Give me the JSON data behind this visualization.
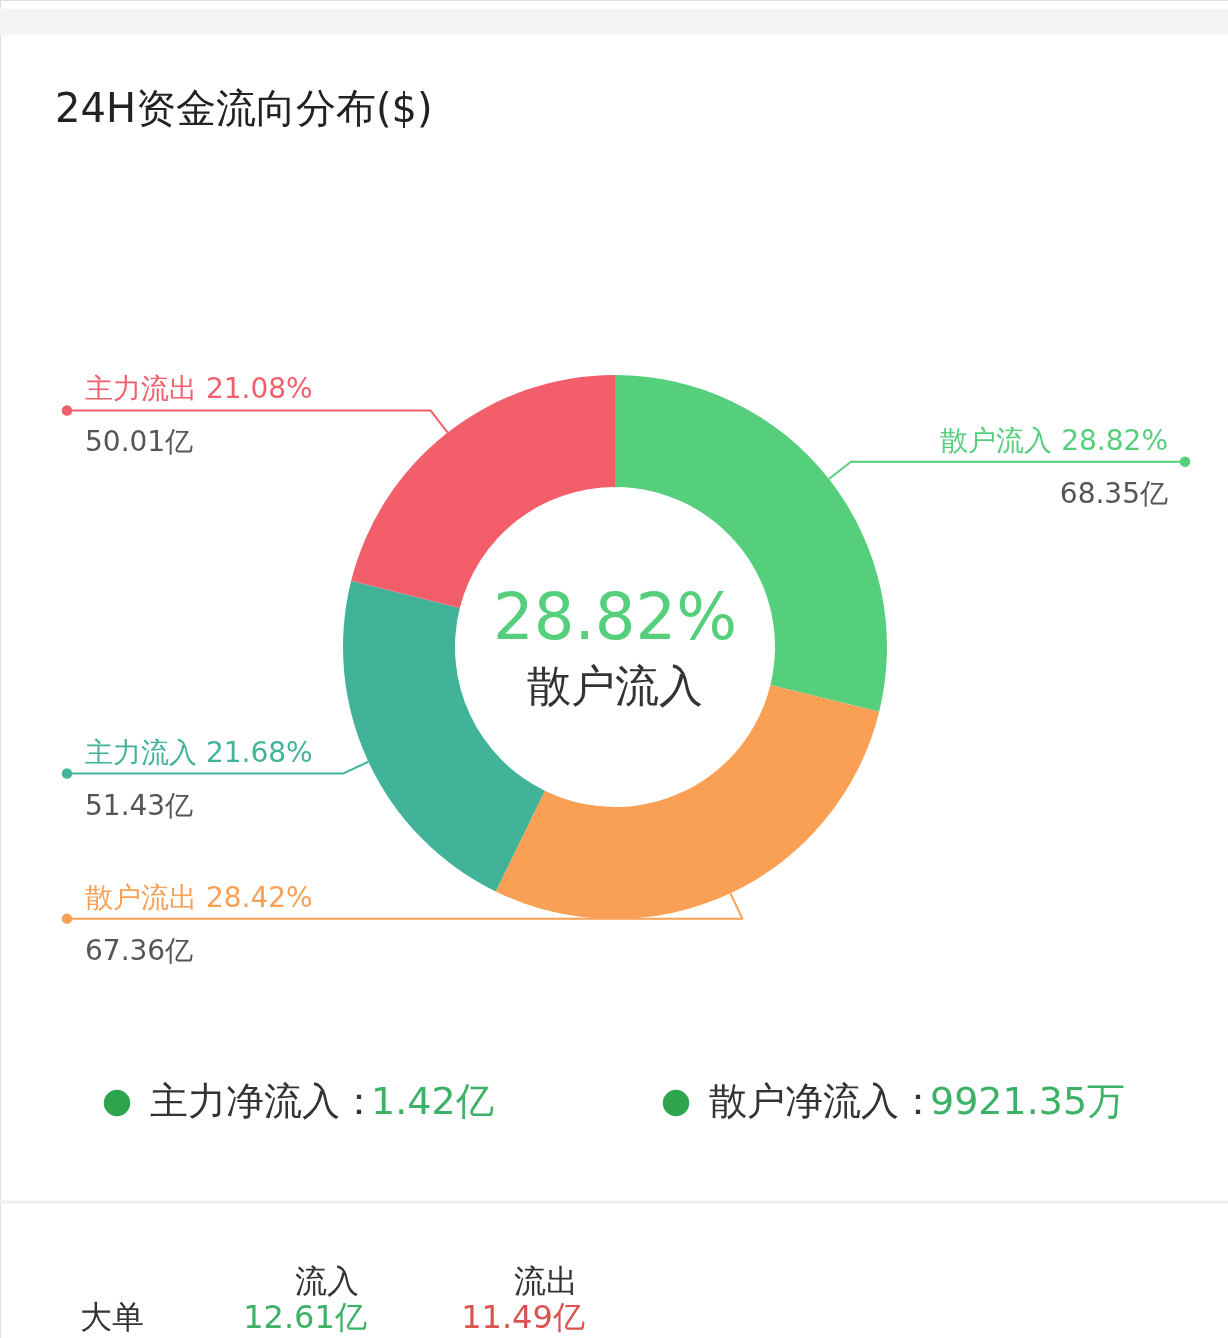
{
  "chart_data": {
    "type": "donut",
    "title": "24H资金流向分布($)",
    "categories": [
      "散户流入 28.82%",
      "散户流出 28.42%",
      "主力流入 21.68%",
      "主力流出 21.08%"
    ],
    "values": [
      68.35,
      67.36,
      51.43,
      50.01
    ],
    "colors": [
      "#56cf7c",
      "#f9a054",
      "#41b399",
      "#f25f6a"
    ],
    "value_labels": [
      "68.35亿",
      "67.36亿",
      "51.43亿",
      "50.01亿"
    ],
    "annotations": [
      "28.82%",
      "散户流入",
      "主力净流入：1.42亿",
      "散户净流入：9921.35万",
      "流入",
      "流出",
      "大单",
      "12.61亿",
      "11.49亿"
    ]
  }
}
